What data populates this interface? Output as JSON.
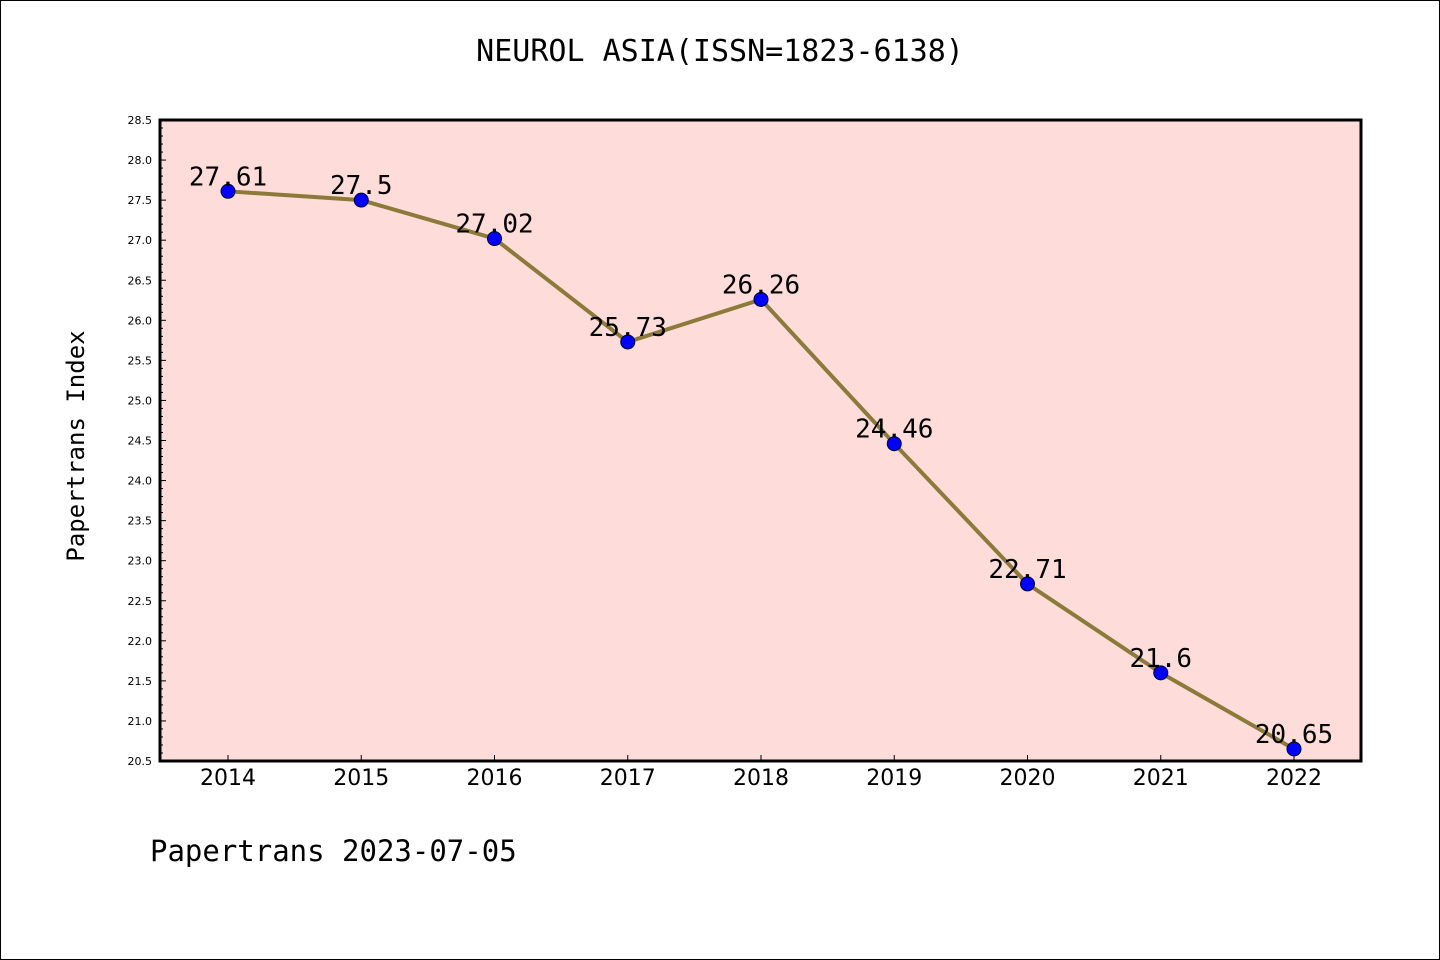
{
  "chart_data": {
    "type": "line",
    "title": "NEUROL ASIA(ISSN=1823-6138)",
    "ylabel": "Papertrans Index",
    "xlabel": "",
    "x": [
      "2014",
      "2015",
      "2016",
      "2017",
      "2018",
      "2019",
      "2020",
      "2021",
      "2022"
    ],
    "series": [
      {
        "values": [
          27.61,
          27.5,
          27.02,
          25.73,
          26.26,
          24.46,
          22.71,
          21.6,
          20.65
        ],
        "data_labels": [
          "27.61",
          "27.5",
          "27.02",
          "25.73",
          "26.26",
          "24.46",
          "22.71",
          "21.6",
          "20.65"
        ],
        "line_color": "#8b7a3a",
        "marker_color": "#0000ff"
      }
    ],
    "ylim": [
      20.5,
      28.5
    ],
    "yticks": [
      "20.5",
      "21.0",
      "21.5",
      "22.0",
      "22.5",
      "23.0",
      "23.5",
      "24.0",
      "24.5",
      "25.0",
      "25.5",
      "26.0",
      "26.5",
      "27.0",
      "27.5",
      "28.0",
      "28.5"
    ],
    "plot_background": "#fddcda",
    "grid": false,
    "legend": "none"
  },
  "footer": "Papertrans 2023-07-05"
}
